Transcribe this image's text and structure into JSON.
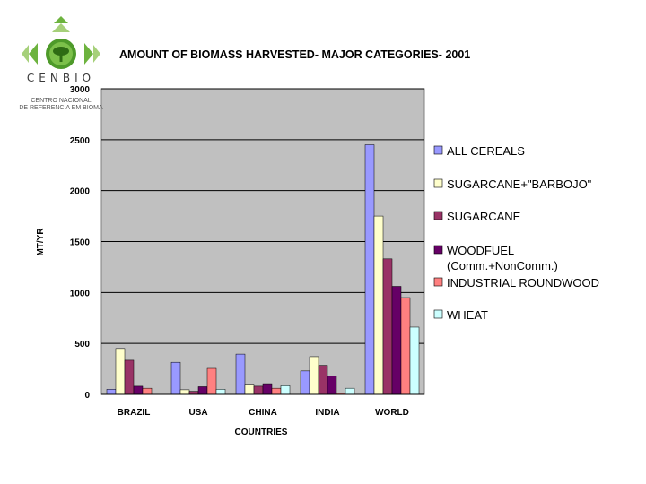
{
  "logo": {
    "wordmark": "CENBIO",
    "subtitle_line1": "CENTRO NACIONAL",
    "subtitle_line2": "DE REFERÊNCIA EM BIOMA"
  },
  "colors": {
    "plot_background": "#c0c0c0",
    "all_cereals": "#9999ff",
    "sugarcane_barbojo": "#ffffcc",
    "sugarcane": "#993366",
    "woodfuel": "#660066",
    "industrial_roundwood": "#ff8080",
    "wheat": "#ccffff"
  },
  "chart_data": {
    "type": "bar",
    "title": "AMOUNT OF BIOMASS HARVESTED- MAJOR CATEGORIES- 2001",
    "xlabel": "COUNTRIES",
    "ylabel": "MT/YR",
    "ylim": [
      0,
      3000
    ],
    "yticks": [
      "0",
      "500",
      "1000",
      "1500",
      "2000",
      "2500",
      "3000"
    ],
    "ytick_values": [
      0,
      500,
      1000,
      1500,
      2000,
      2500,
      3000
    ],
    "grid": "horizontal",
    "legend_placement": "right",
    "categories": [
      "BRAZIL",
      "USA",
      "CHINA",
      "INDIA",
      "WORLD"
    ],
    "series": [
      {
        "name": "ALL CEREALS",
        "color_key": "all_cereals",
        "values": [
          50,
          315,
          395,
          230,
          2450
        ]
      },
      {
        "name": "SUGARCANE+\"BARBOJO\"",
        "color_key": "sugarcane_barbojo",
        "values": [
          450,
          45,
          100,
          370,
          1750
        ]
      },
      {
        "name": "SUGARCANE",
        "color_key": "sugarcane",
        "values": [
          335,
          30,
          80,
          285,
          1330
        ]
      },
      {
        "name": "WOODFUEL",
        "name_line2": "(Comm.+NonComm.)",
        "color_key": "woodfuel",
        "values": [
          80,
          75,
          105,
          180,
          1060
        ]
      },
      {
        "name": "INDUSTRIAL ROUNDWOOD",
        "color_key": "industrial_roundwood",
        "values": [
          60,
          255,
          60,
          10,
          950
        ]
      },
      {
        "name": "WHEAT",
        "color_key": "wheat",
        "values": [
          0,
          50,
          85,
          60,
          660
        ]
      }
    ]
  }
}
